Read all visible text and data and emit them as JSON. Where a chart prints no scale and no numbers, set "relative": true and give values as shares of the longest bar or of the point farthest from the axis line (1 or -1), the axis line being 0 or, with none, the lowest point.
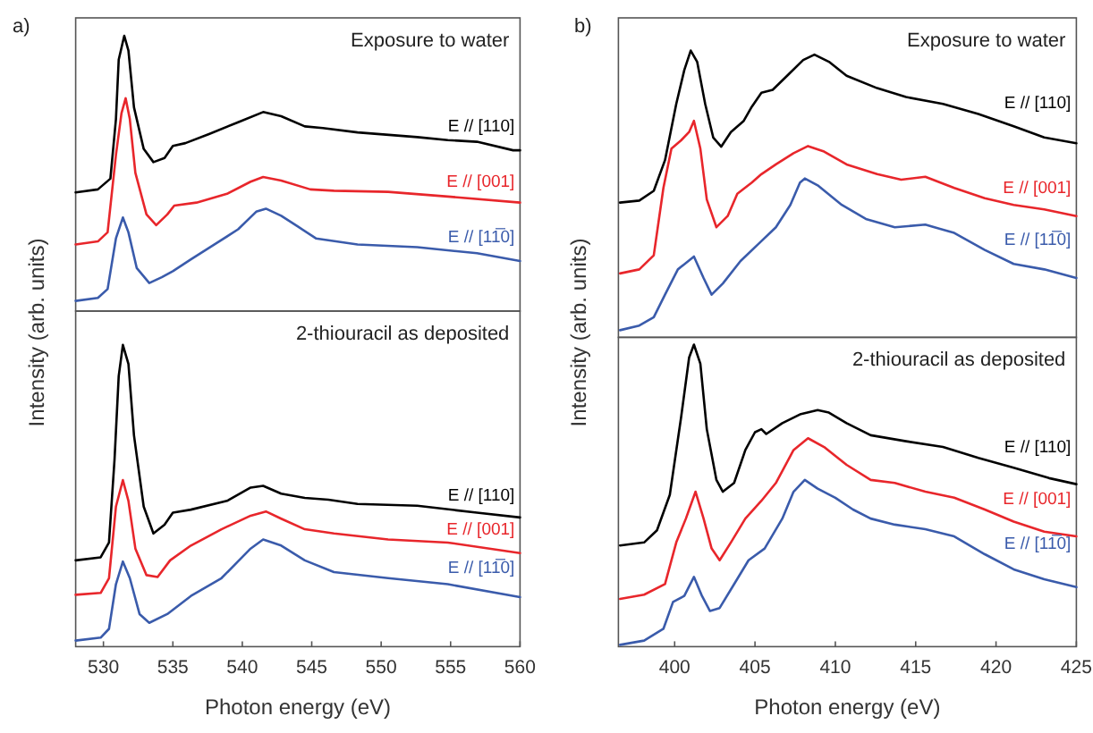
{
  "chart_data": [
    {
      "type": "line",
      "relative": true,
      "title": "Exposure to water",
      "annotations": [
        "a)"
      ],
      "xlim": [
        528,
        560
      ],
      "tick_labels": false,
      "series": [
        {
          "name": "E // [110]",
          "color": "#000000",
          "x": [
            528,
            529.6,
            530.5,
            530.9,
            531.1,
            531.5,
            531.8,
            532.2,
            532.9,
            533.6,
            534.4,
            535.0,
            535.9,
            537.6,
            539.7,
            541.5,
            542.8,
            544.5,
            545.8,
            548.3,
            552.6,
            554.8,
            556.9,
            559.5,
            560
          ],
          "values": [
            0.431,
            0.442,
            0.481,
            0.697,
            0.913,
            1,
            0.946,
            0.74,
            0.589,
            0.541,
            0.556,
            0.6,
            0.61,
            0.643,
            0.686,
            0.723,
            0.708,
            0.671,
            0.665,
            0.649,
            0.632,
            0.621,
            0.615,
            0.584,
            0.584
          ]
        },
        {
          "name": "E // [001]",
          "color": "#e8262b",
          "x": [
            528,
            529.6,
            530.3,
            530.9,
            531.3,
            531.6,
            531.9,
            532.3,
            533.1,
            533.8,
            534.6,
            535.1,
            536.7,
            538.9,
            540.6,
            541.5,
            542.8,
            544.9,
            546.6,
            550.5,
            554.8,
            560
          ],
          "values": [
            0.242,
            0.253,
            0.286,
            0.567,
            0.719,
            0.773,
            0.697,
            0.502,
            0.351,
            0.312,
            0.351,
            0.383,
            0.394,
            0.426,
            0.47,
            0.487,
            0.474,
            0.442,
            0.437,
            0.433,
            0.416,
            0.394
          ]
        },
        {
          "name": "E // [11̅0]",
          "color": "#3a5bab",
          "x": [
            528,
            529.6,
            530.3,
            530.9,
            531.4,
            531.8,
            532.4,
            533.3,
            534.2,
            535.0,
            536.3,
            538.0,
            539.7,
            541.0,
            541.7,
            542.8,
            544.0,
            545.3,
            548.3,
            552.6,
            556.9,
            560
          ],
          "values": [
            0.037,
            0.048,
            0.08,
            0.264,
            0.34,
            0.286,
            0.156,
            0.102,
            0.123,
            0.145,
            0.188,
            0.242,
            0.297,
            0.361,
            0.372,
            0.346,
            0.307,
            0.264,
            0.242,
            0.232,
            0.21,
            0.182
          ]
        }
      ]
    },
    {
      "type": "line",
      "relative": true,
      "title": "2-thiouracil as deposited",
      "xlabel": "Photon energy (eV)",
      "ylabel": "Intensity (arb. units)",
      "xlim": [
        528,
        560
      ],
      "xticks": [
        530,
        535,
        540,
        545,
        550,
        555,
        560
      ],
      "tick_labels": "x",
      "series": [
        {
          "name": "E // [110]",
          "color": "#000000",
          "x": [
            528,
            529.8,
            530.4,
            530.8,
            531.1,
            531.4,
            531.8,
            532.2,
            532.9,
            533.6,
            534.4,
            535.0,
            536.3,
            538.9,
            540.6,
            541.5,
            542.8,
            544.5,
            546.2,
            548.3,
            552.6,
            556.9,
            560
          ],
          "values": [
            0.286,
            0.296,
            0.345,
            0.621,
            0.897,
            1,
            0.937,
            0.7,
            0.464,
            0.375,
            0.404,
            0.444,
            0.454,
            0.483,
            0.527,
            0.533,
            0.507,
            0.493,
            0.487,
            0.473,
            0.467,
            0.444,
            0.428
          ]
        },
        {
          "name": "E // [001]",
          "color": "#e8262b",
          "x": [
            528,
            529.8,
            530.4,
            530.9,
            531.4,
            531.8,
            532.3,
            533.1,
            533.9,
            534.8,
            536.3,
            538.5,
            540.6,
            541.7,
            542.8,
            544.5,
            546.6,
            550.5,
            554.8,
            560
          ],
          "values": [
            0.172,
            0.178,
            0.227,
            0.464,
            0.552,
            0.483,
            0.325,
            0.237,
            0.231,
            0.286,
            0.335,
            0.389,
            0.434,
            0.448,
            0.424,
            0.389,
            0.375,
            0.355,
            0.345,
            0.31
          ]
        },
        {
          "name": "E // [11̅0]",
          "color": "#3a5bab",
          "x": [
            528,
            529.8,
            530.4,
            530.9,
            531.4,
            531.9,
            532.6,
            533.3,
            534.6,
            536.3,
            538.5,
            540.6,
            541.5,
            542.8,
            544.5,
            546.6,
            550.5,
            554.8,
            560
          ],
          "values": [
            0.02,
            0.03,
            0.059,
            0.207,
            0.282,
            0.227,
            0.108,
            0.079,
            0.108,
            0.168,
            0.227,
            0.325,
            0.355,
            0.335,
            0.286,
            0.247,
            0.227,
            0.207,
            0.164
          ]
        }
      ]
    },
    {
      "type": "line",
      "relative": true,
      "title": "Exposure to water",
      "annotations": [
        "b)"
      ],
      "xlim": [
        396.5,
        425
      ],
      "tick_labels": false,
      "series": [
        {
          "name": "E // [110]",
          "color": "#000000",
          "x": [
            396.6,
            397.8,
            398.7,
            399.4,
            400.1,
            400.6,
            401.0,
            401.4,
            401.9,
            402.4,
            402.9,
            403.5,
            404.3,
            404.8,
            405.4,
            406.1,
            407.0,
            408.0,
            408.7,
            409.6,
            410.7,
            412.6,
            414.4,
            416.7,
            418.9,
            421.1,
            423.0,
            425
          ],
          "values": [
            0.47,
            0.477,
            0.511,
            0.618,
            0.814,
            0.932,
            1,
            0.961,
            0.814,
            0.697,
            0.665,
            0.716,
            0.755,
            0.804,
            0.853,
            0.863,
            0.912,
            0.967,
            0.986,
            0.961,
            0.912,
            0.869,
            0.838,
            0.814,
            0.779,
            0.736,
            0.697,
            0.677
          ]
        },
        {
          "name": "E // [001]",
          "color": "#e8262b",
          "x": [
            396.6,
            397.8,
            398.7,
            399.3,
            399.8,
            400.4,
            400.9,
            401.2,
            401.6,
            402.0,
            402.6,
            403.3,
            403.9,
            404.8,
            405.4,
            406.3,
            407.4,
            408.3,
            409.3,
            410.7,
            412.6,
            414.1,
            415.6,
            417.4,
            419.3,
            421.1,
            423.0,
            425
          ],
          "values": [
            0.223,
            0.237,
            0.286,
            0.521,
            0.658,
            0.687,
            0.716,
            0.755,
            0.658,
            0.481,
            0.384,
            0.423,
            0.501,
            0.54,
            0.569,
            0.603,
            0.642,
            0.667,
            0.648,
            0.603,
            0.569,
            0.55,
            0.56,
            0.521,
            0.485,
            0.462,
            0.446,
            0.423
          ]
        },
        {
          "name": "E // [11̅0]",
          "color": "#3a5bab",
          "x": [
            396.6,
            397.8,
            398.7,
            399.4,
            400.2,
            401.2,
            401.8,
            402.3,
            403.0,
            404.1,
            405.2,
            406.3,
            407.2,
            407.8,
            408.1,
            408.9,
            410.4,
            411.9,
            413.7,
            415.6,
            417.4,
            419.3,
            421.1,
            423.0,
            425
          ],
          "values": [
            0.025,
            0.041,
            0.07,
            0.149,
            0.237,
            0.282,
            0.207,
            0.149,
            0.188,
            0.266,
            0.325,
            0.384,
            0.462,
            0.54,
            0.554,
            0.53,
            0.462,
            0.413,
            0.384,
            0.393,
            0.364,
            0.305,
            0.256,
            0.237,
            0.207
          ]
        }
      ]
    },
    {
      "type": "line",
      "relative": true,
      "title": "2-thiouracil as deposited",
      "xlabel": "Photon energy (eV)",
      "ylabel": "Intensity (arb. units)",
      "xlim": [
        396.5,
        425
      ],
      "xticks": [
        400,
        405,
        410,
        415,
        420,
        425
      ],
      "tick_labels": "x",
      "series": [
        {
          "name": "E // [110]",
          "color": "#000000",
          "x": [
            396.6,
            398.1,
            398.9,
            399.7,
            400.4,
            400.9,
            401.2,
            401.6,
            402.0,
            402.6,
            403.0,
            403.7,
            404.4,
            405.0,
            405.4,
            405.7,
            406.7,
            407.8,
            408.9,
            409.6,
            410.7,
            412.2,
            414.4,
            416.7,
            418.9,
            421.1,
            423.3,
            425
          ],
          "values": [
            0.335,
            0.345,
            0.385,
            0.503,
            0.759,
            0.957,
            1,
            0.937,
            0.72,
            0.552,
            0.513,
            0.542,
            0.651,
            0.71,
            0.72,
            0.704,
            0.74,
            0.769,
            0.783,
            0.775,
            0.74,
            0.7,
            0.68,
            0.661,
            0.625,
            0.592,
            0.558,
            0.538
          ]
        },
        {
          "name": "E // [001]",
          "color": "#e8262b",
          "x": [
            396.6,
            398.1,
            399.4,
            400.1,
            400.7,
            401.3,
            401.8,
            402.3,
            402.8,
            403.5,
            404.4,
            405.4,
            406.3,
            407.4,
            408.3,
            409.3,
            410.7,
            412.2,
            413.7,
            415.6,
            417.4,
            419.3,
            421.1,
            423.0,
            425
          ],
          "values": [
            0.158,
            0.172,
            0.207,
            0.345,
            0.424,
            0.513,
            0.424,
            0.325,
            0.286,
            0.345,
            0.424,
            0.483,
            0.542,
            0.651,
            0.69,
            0.661,
            0.602,
            0.552,
            0.542,
            0.513,
            0.493,
            0.454,
            0.414,
            0.381,
            0.365
          ]
        },
        {
          "name": "E // [11̅0]",
          "color": "#3a5bab",
          "x": [
            396.6,
            398.1,
            399.3,
            399.9,
            400.6,
            401.2,
            401.7,
            402.2,
            402.8,
            403.7,
            404.6,
            405.6,
            406.7,
            407.4,
            408.1,
            408.9,
            410.0,
            411.1,
            412.2,
            413.7,
            415.6,
            417.4,
            419.3,
            421.1,
            423.0,
            425
          ],
          "values": [
            0.006,
            0.02,
            0.059,
            0.148,
            0.168,
            0.231,
            0.168,
            0.118,
            0.128,
            0.207,
            0.286,
            0.325,
            0.424,
            0.513,
            0.552,
            0.523,
            0.493,
            0.454,
            0.424,
            0.404,
            0.389,
            0.365,
            0.306,
            0.256,
            0.223,
            0.197
          ]
        }
      ]
    }
  ]
}
